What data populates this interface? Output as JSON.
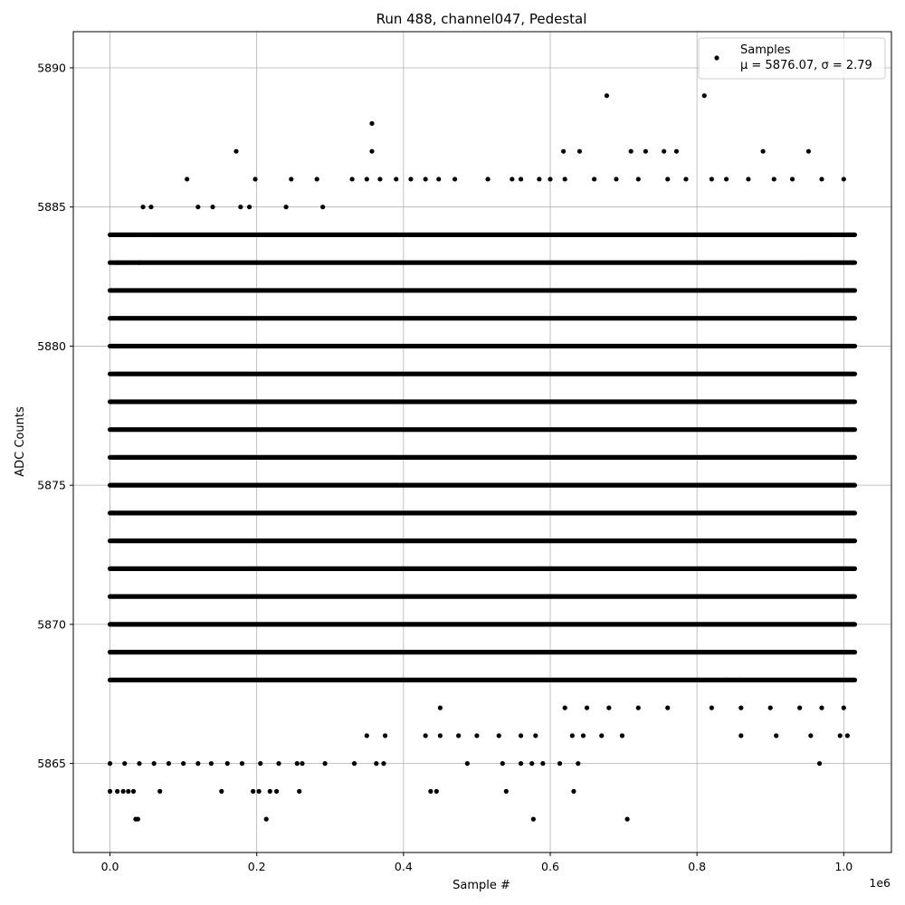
{
  "chart_data": {
    "type": "scatter",
    "title": "Run 488, channel047, Pedestal",
    "xlabel": "Sample #",
    "ylabel": "ADC Counts",
    "x_offset_label": "1e6",
    "xlim": [
      -0.05,
      1.065
    ],
    "ylim": [
      5861.8,
      5891.3
    ],
    "xticks": [
      0.0,
      0.2,
      0.4,
      0.6,
      0.8,
      1.0
    ],
    "xtick_labels": [
      "0.0",
      "0.2",
      "0.4",
      "0.6",
      "0.8",
      "1.0"
    ],
    "yticks": [
      5865,
      5870,
      5875,
      5880,
      5885,
      5890
    ],
    "ytick_labels": [
      "5865",
      "5870",
      "5875",
      "5880",
      "5885",
      "5890"
    ],
    "grid": true,
    "legend_position": "top-right",
    "marker_color": "#000000",
    "series": [
      {
        "name": "Samples",
        "legend_stats": "μ = 5876.07, σ = 2.79",
        "mean": 5876.07,
        "std": 2.79,
        "x_range": [
          0.0,
          1.015
        ],
        "dense_levels": [
          5868,
          5869,
          5870,
          5871,
          5872,
          5873,
          5874,
          5875,
          5876,
          5877,
          5878,
          5879,
          5880,
          5881,
          5882,
          5883,
          5884
        ],
        "sparse_points": [
          {
            "x": 0.677,
            "y": 5889
          },
          {
            "x": 0.81,
            "y": 5889
          },
          {
            "x": 0.357,
            "y": 5888
          },
          {
            "x": 0.172,
            "y": 5887
          },
          {
            "x": 0.357,
            "y": 5887
          },
          {
            "x": 0.618,
            "y": 5887
          },
          {
            "x": 0.64,
            "y": 5887
          },
          {
            "x": 0.71,
            "y": 5887
          },
          {
            "x": 0.73,
            "y": 5887
          },
          {
            "x": 0.755,
            "y": 5887
          },
          {
            "x": 0.772,
            "y": 5887
          },
          {
            "x": 0.89,
            "y": 5887
          },
          {
            "x": 0.952,
            "y": 5887
          },
          {
            "x": 0.105,
            "y": 5886
          },
          {
            "x": 0.198,
            "y": 5886
          },
          {
            "x": 0.247,
            "y": 5886
          },
          {
            "x": 0.282,
            "y": 5886
          },
          {
            "x": 0.33,
            "y": 5886
          },
          {
            "x": 0.35,
            "y": 5886
          },
          {
            "x": 0.368,
            "y": 5886
          },
          {
            "x": 0.39,
            "y": 5886
          },
          {
            "x": 0.41,
            "y": 5886
          },
          {
            "x": 0.43,
            "y": 5886
          },
          {
            "x": 0.448,
            "y": 5886
          },
          {
            "x": 0.47,
            "y": 5886
          },
          {
            "x": 0.515,
            "y": 5886
          },
          {
            "x": 0.548,
            "y": 5886
          },
          {
            "x": 0.56,
            "y": 5886
          },
          {
            "x": 0.585,
            "y": 5886
          },
          {
            "x": 0.6,
            "y": 5886
          },
          {
            "x": 0.62,
            "y": 5886
          },
          {
            "x": 0.66,
            "y": 5886
          },
          {
            "x": 0.69,
            "y": 5886
          },
          {
            "x": 0.72,
            "y": 5886
          },
          {
            "x": 0.76,
            "y": 5886
          },
          {
            "x": 0.785,
            "y": 5886
          },
          {
            "x": 0.82,
            "y": 5886
          },
          {
            "x": 0.84,
            "y": 5886
          },
          {
            "x": 0.87,
            "y": 5886
          },
          {
            "x": 0.905,
            "y": 5886
          },
          {
            "x": 0.93,
            "y": 5886
          },
          {
            "x": 0.97,
            "y": 5886
          },
          {
            "x": 1.0,
            "y": 5886
          },
          {
            "x": 0.045,
            "y": 5885
          },
          {
            "x": 0.056,
            "y": 5885
          },
          {
            "x": 0.12,
            "y": 5885
          },
          {
            "x": 0.14,
            "y": 5885
          },
          {
            "x": 0.178,
            "y": 5885
          },
          {
            "x": 0.19,
            "y": 5885
          },
          {
            "x": 0.24,
            "y": 5885
          },
          {
            "x": 0.29,
            "y": 5885
          },
          {
            "x": 0.007,
            "y": 5884
          },
          {
            "x": 0.02,
            "y": 5884
          },
          {
            "x": 0.038,
            "y": 5884
          },
          {
            "x": 0.07,
            "y": 5884
          },
          {
            "x": 0.01,
            "y": 5883
          },
          {
            "x": 0.04,
            "y": 5883
          },
          {
            "x": 0.84,
            "y": 5868
          },
          {
            "x": 0.86,
            "y": 5868
          },
          {
            "x": 0.45,
            "y": 5867
          },
          {
            "x": 0.62,
            "y": 5867
          },
          {
            "x": 0.65,
            "y": 5867
          },
          {
            "x": 0.68,
            "y": 5867
          },
          {
            "x": 0.72,
            "y": 5867
          },
          {
            "x": 0.76,
            "y": 5867
          },
          {
            "x": 0.82,
            "y": 5867
          },
          {
            "x": 0.86,
            "y": 5867
          },
          {
            "x": 0.9,
            "y": 5867
          },
          {
            "x": 0.94,
            "y": 5867
          },
          {
            "x": 0.97,
            "y": 5867
          },
          {
            "x": 1.0,
            "y": 5867
          },
          {
            "x": 0.35,
            "y": 5866
          },
          {
            "x": 0.375,
            "y": 5866
          },
          {
            "x": 0.43,
            "y": 5866
          },
          {
            "x": 0.45,
            "y": 5866
          },
          {
            "x": 0.475,
            "y": 5866
          },
          {
            "x": 0.5,
            "y": 5866
          },
          {
            "x": 0.53,
            "y": 5866
          },
          {
            "x": 0.56,
            "y": 5866
          },
          {
            "x": 0.58,
            "y": 5866
          },
          {
            "x": 0.63,
            "y": 5866
          },
          {
            "x": 0.645,
            "y": 5866
          },
          {
            "x": 0.67,
            "y": 5866
          },
          {
            "x": 0.698,
            "y": 5866
          },
          {
            "x": 0.86,
            "y": 5866
          },
          {
            "x": 0.908,
            "y": 5866
          },
          {
            "x": 0.955,
            "y": 5866
          },
          {
            "x": 0.995,
            "y": 5866
          },
          {
            "x": 1.005,
            "y": 5866
          },
          {
            "x": 0.0,
            "y": 5865
          },
          {
            "x": 0.02,
            "y": 5865
          },
          {
            "x": 0.04,
            "y": 5865
          },
          {
            "x": 0.06,
            "y": 5865
          },
          {
            "x": 0.08,
            "y": 5865
          },
          {
            "x": 0.1,
            "y": 5865
          },
          {
            "x": 0.12,
            "y": 5865
          },
          {
            "x": 0.138,
            "y": 5865
          },
          {
            "x": 0.16,
            "y": 5865
          },
          {
            "x": 0.18,
            "y": 5865
          },
          {
            "x": 0.205,
            "y": 5865
          },
          {
            "x": 0.23,
            "y": 5865
          },
          {
            "x": 0.255,
            "y": 5865
          },
          {
            "x": 0.262,
            "y": 5865
          },
          {
            "x": 0.293,
            "y": 5865
          },
          {
            "x": 0.333,
            "y": 5865
          },
          {
            "x": 0.363,
            "y": 5865
          },
          {
            "x": 0.373,
            "y": 5865
          },
          {
            "x": 0.487,
            "y": 5865
          },
          {
            "x": 0.535,
            "y": 5865
          },
          {
            "x": 0.56,
            "y": 5865
          },
          {
            "x": 0.575,
            "y": 5865
          },
          {
            "x": 0.59,
            "y": 5865
          },
          {
            "x": 0.613,
            "y": 5865
          },
          {
            "x": 0.638,
            "y": 5865
          },
          {
            "x": 0.967,
            "y": 5865
          },
          {
            "x": 0.0,
            "y": 5864
          },
          {
            "x": 0.01,
            "y": 5864
          },
          {
            "x": 0.018,
            "y": 5864
          },
          {
            "x": 0.025,
            "y": 5864
          },
          {
            "x": 0.032,
            "y": 5864
          },
          {
            "x": 0.068,
            "y": 5864
          },
          {
            "x": 0.152,
            "y": 5864
          },
          {
            "x": 0.195,
            "y": 5864
          },
          {
            "x": 0.203,
            "y": 5864
          },
          {
            "x": 0.218,
            "y": 5864
          },
          {
            "x": 0.227,
            "y": 5864
          },
          {
            "x": 0.258,
            "y": 5864
          },
          {
            "x": 0.437,
            "y": 5864
          },
          {
            "x": 0.445,
            "y": 5864
          },
          {
            "x": 0.54,
            "y": 5864
          },
          {
            "x": 0.632,
            "y": 5864
          },
          {
            "x": 0.035,
            "y": 5863
          },
          {
            "x": 0.038,
            "y": 5863
          },
          {
            "x": 0.213,
            "y": 5863
          },
          {
            "x": 0.577,
            "y": 5863
          },
          {
            "x": 0.705,
            "y": 5863
          }
        ]
      }
    ]
  }
}
